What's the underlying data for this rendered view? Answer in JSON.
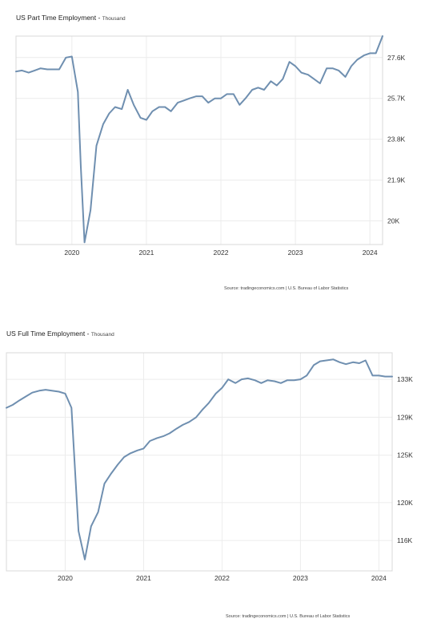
{
  "chart_data": [
    {
      "type": "line",
      "title": "US Part Time Employment",
      "subtitle": "Thousand",
      "source": "Source: tradingeconomics.com | U.S. Bureau of Labor Statistics",
      "xlim": [
        2019.25,
        2024.17
      ],
      "ylim": [
        18900,
        28600
      ],
      "x_ticks": [
        2020,
        2021,
        2022,
        2023,
        2024
      ],
      "x_tick_labels": [
        "2020",
        "2021",
        "2022",
        "2023",
        "2024"
      ],
      "y_ticks": [
        20000,
        21900,
        23800,
        25700,
        27600
      ],
      "y_tick_labels": [
        "20K",
        "21.9K",
        "23.8K",
        "25.7K",
        "27.6K"
      ],
      "y_axis_side": "right",
      "grid": true,
      "line_color": "#6f8fb0",
      "series": [
        {
          "x": [
            2019.25,
            2019.33,
            2019.42,
            2019.5,
            2019.58,
            2019.67,
            2019.75,
            2019.83,
            2019.92,
            2020.0,
            2020.08,
            2020.12,
            2020.17,
            2020.25,
            2020.33,
            2020.42,
            2020.5,
            2020.58,
            2020.67,
            2020.75,
            2020.83,
            2020.92,
            2021.0,
            2021.08,
            2021.17,
            2021.25,
            2021.33,
            2021.42,
            2021.5,
            2021.58,
            2021.67,
            2021.75,
            2021.83,
            2021.92,
            2022.0,
            2022.08,
            2022.17,
            2022.25,
            2022.33,
            2022.42,
            2022.5,
            2022.58,
            2022.67,
            2022.75,
            2022.83,
            2022.92,
            2023.0,
            2023.08,
            2023.17,
            2023.25,
            2023.33,
            2023.42,
            2023.5,
            2023.58,
            2023.67,
            2023.75,
            2023.83,
            2023.92,
            2024.0,
            2024.08,
            2024.17
          ],
          "y": [
            26950,
            27000,
            26900,
            27000,
            27100,
            27050,
            27050,
            27050,
            27600,
            27650,
            26000,
            22500,
            19000,
            20500,
            23500,
            24500,
            25000,
            25300,
            25200,
            26100,
            25400,
            24800,
            24700,
            25100,
            25300,
            25300,
            25100,
            25500,
            25600,
            25700,
            25800,
            25800,
            25500,
            25700,
            25700,
            25900,
            25900,
            25400,
            25700,
            26100,
            26200,
            26100,
            26500,
            26300,
            26600,
            27400,
            27200,
            26900,
            26800,
            26600,
            26400,
            27100,
            27100,
            27000,
            26700,
            27200,
            27500,
            27700,
            27800,
            27800,
            28600
          ]
        }
      ]
    },
    {
      "type": "line",
      "title": "US Full Time Employment",
      "subtitle": "Thousand",
      "source": "Source: tradingeconomics.com | U.S. Bureau of Labor Statistics",
      "xlim": [
        2019.25,
        2024.17
      ],
      "ylim": [
        112800,
        135800
      ],
      "x_ticks": [
        2020,
        2021,
        2022,
        2023,
        2024
      ],
      "x_tick_labels": [
        "2020",
        "2021",
        "2022",
        "2023",
        "2024"
      ],
      "y_ticks": [
        116000,
        120000,
        125000,
        129000,
        133000
      ],
      "y_tick_labels": [
        "116K",
        "120K",
        "125K",
        "129K",
        "133K"
      ],
      "y_axis_side": "right",
      "grid": true,
      "line_color": "#6f8fb0",
      "series": [
        {
          "x": [
            2019.25,
            2019.33,
            2019.42,
            2019.5,
            2019.58,
            2019.67,
            2019.75,
            2019.83,
            2019.92,
            2020.0,
            2020.08,
            2020.17,
            2020.25,
            2020.33,
            2020.42,
            2020.5,
            2020.58,
            2020.67,
            2020.75,
            2020.83,
            2020.92,
            2021.0,
            2021.08,
            2021.17,
            2021.25,
            2021.33,
            2021.42,
            2021.5,
            2021.58,
            2021.67,
            2021.75,
            2021.83,
            2021.92,
            2022.0,
            2022.08,
            2022.17,
            2022.25,
            2022.33,
            2022.42,
            2022.5,
            2022.58,
            2022.67,
            2022.75,
            2022.83,
            2022.92,
            2023.0,
            2023.08,
            2023.17,
            2023.25,
            2023.33,
            2023.42,
            2023.5,
            2023.58,
            2023.67,
            2023.75,
            2023.83,
            2023.92,
            2024.0,
            2024.08,
            2024.17
          ],
          "y": [
            130000,
            130300,
            130800,
            131200,
            131600,
            131800,
            131900,
            131800,
            131700,
            131500,
            130000,
            117000,
            114000,
            117500,
            119000,
            122000,
            123000,
            124000,
            124800,
            125200,
            125500,
            125700,
            126500,
            126800,
            127000,
            127300,
            127800,
            128200,
            128500,
            129000,
            129800,
            130500,
            131500,
            132100,
            133000,
            132600,
            133000,
            133100,
            132900,
            132600,
            132900,
            132800,
            132600,
            132900,
            132900,
            133000,
            133400,
            134500,
            134900,
            135000,
            135100,
            134800,
            134600,
            134800,
            134700,
            135000,
            133400,
            133400,
            133300,
            133300
          ]
        }
      ]
    }
  ]
}
